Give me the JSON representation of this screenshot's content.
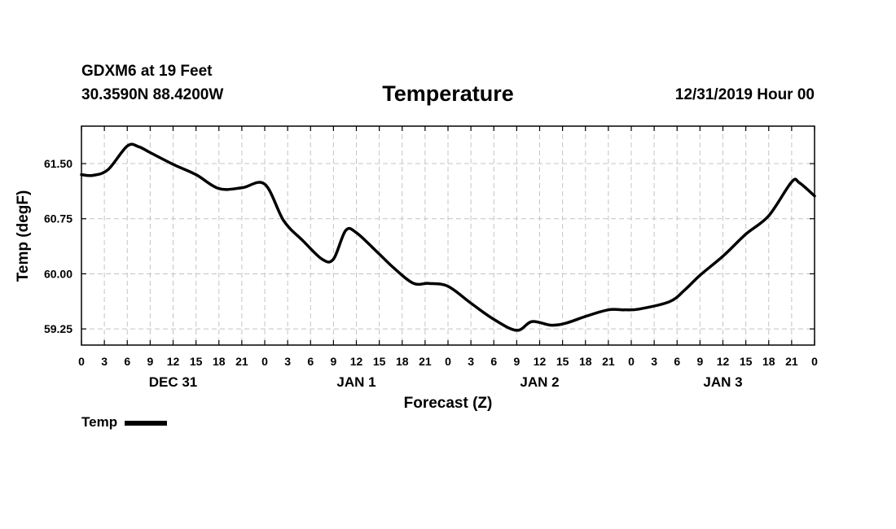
{
  "header": {
    "station": "GDXM6 at 19 Feet",
    "coords": "30.3590N 88.4200W",
    "run_time": "12/31/2019 Hour 00"
  },
  "chart_data": {
    "type": "line",
    "title": "Temperature",
    "xlabel": "Forecast (Z)",
    "ylabel": "Temp (degF)",
    "ylim": [
      59.03,
      62.01
    ],
    "yticks": [
      59.25,
      60.0,
      60.75,
      61.5
    ],
    "ytick_labels": [
      "59.25",
      "60.00",
      "60.75",
      "61.50"
    ],
    "x_hours_range": [
      0,
      96
    ],
    "xtick_labels": [
      "0",
      "3",
      "6",
      "9",
      "12",
      "15",
      "18",
      "21",
      "0",
      "3",
      "6",
      "9",
      "12",
      "15",
      "18",
      "21",
      "0",
      "3",
      "6",
      "9",
      "12",
      "15",
      "18",
      "21",
      "0",
      "3",
      "6",
      "9",
      "12",
      "15",
      "18",
      "21",
      "0"
    ],
    "day_labels": [
      {
        "label": "DEC 31",
        "hour": 12
      },
      {
        "label": "JAN 1",
        "hour": 36
      },
      {
        "label": "JAN 2",
        "hour": 60
      },
      {
        "label": "JAN 3",
        "hour": 84
      }
    ],
    "grid": true,
    "legend_position": "bottom-left",
    "series": [
      {
        "name": "Temp",
        "color": "#000000",
        "x": [
          0,
          1.5,
          3.5,
          6,
          7.5,
          9,
          12,
          15,
          18,
          21,
          24,
          26.5,
          29,
          31.5,
          33,
          34.6,
          36,
          38.5,
          41,
          43.5,
          45.5,
          48,
          51,
          54,
          57,
          59,
          61.5,
          63.5,
          66,
          69,
          71,
          73,
          77,
          79,
          81,
          84,
          87,
          90,
          93,
          94,
          96
        ],
        "values": [
          61.35,
          61.34,
          61.42,
          61.74,
          61.73,
          61.65,
          61.49,
          61.35,
          61.16,
          61.17,
          61.22,
          60.72,
          60.45,
          60.2,
          60.2,
          60.59,
          60.56,
          60.32,
          60.07,
          59.87,
          59.87,
          59.83,
          59.6,
          59.38,
          59.23,
          59.35,
          59.3,
          59.33,
          59.42,
          59.51,
          59.51,
          59.52,
          59.62,
          59.78,
          59.98,
          60.24,
          60.54,
          60.79,
          61.25,
          61.24,
          61.06
        ]
      }
    ]
  },
  "legend": {
    "entry_label": "Temp"
  }
}
